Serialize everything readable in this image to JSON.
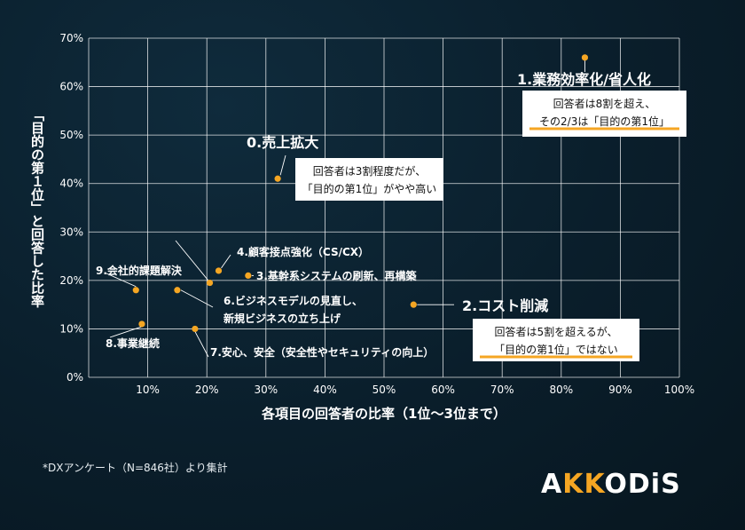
{
  "chart_data": {
    "type": "scatter",
    "xlabel": "各項目の回答者の比率（1位〜3位まで）",
    "ylabel": "「目的の第１位」と回答した比率",
    "xlim": [
      0,
      100
    ],
    "ylim": [
      0,
      70
    ],
    "x_ticks": [
      "10%",
      "20%",
      "30%",
      "40%",
      "50%",
      "60%",
      "70%",
      "80%",
      "90%",
      "100%"
    ],
    "y_ticks": [
      "0%",
      "10%",
      "20%",
      "30%",
      "40%",
      "50%",
      "60%",
      "70%"
    ],
    "grid": true,
    "point_color": "#f5a623",
    "points": [
      {
        "label": "0.売上拡大",
        "x": 32,
        "y": 41
      },
      {
        "label": "1.業務効率化/省人化",
        "x": 84,
        "y": 66
      },
      {
        "label": "2.コスト削減",
        "x": 55,
        "y": 15
      },
      {
        "label": "3.基幹系システムの刷新、再構築",
        "x": 27,
        "y": 21
      },
      {
        "label": "4.顧客接点強化（CS/CX）",
        "x": 22,
        "y": 22
      },
      {
        "label": "6.ビジネスモデルの見直し、",
        "label2": "新規ビジネスの立ち上げ",
        "x": 15,
        "y": 18
      },
      {
        "label": "7.安心、安全（安全性やセキュリティの向上）",
        "x": 18,
        "y": 10
      },
      {
        "label": "8.事業継続",
        "x": 9,
        "y": 11
      },
      {
        "label": "9.会社的課題解決",
        "x": 8,
        "y": 18
      },
      {
        "label": "",
        "x": 20.5,
        "y": 19.5
      }
    ],
    "annotations": [
      {
        "line1": "回答者は8割を超え、",
        "line2": "その2/3は「目的の第1位」"
      },
      {
        "line1": "回答者は3割程度だが、",
        "line2": "「目的の第1位」がやや高い"
      },
      {
        "line1": "回答者は5割を超えるが、",
        "line2": "「目的の第1位」ではない"
      }
    ]
  },
  "footnote": "*DXアンケート（N=846社）より集計",
  "logo": {
    "part1": "A",
    "accent": "KK",
    "part2": "ODiS"
  }
}
